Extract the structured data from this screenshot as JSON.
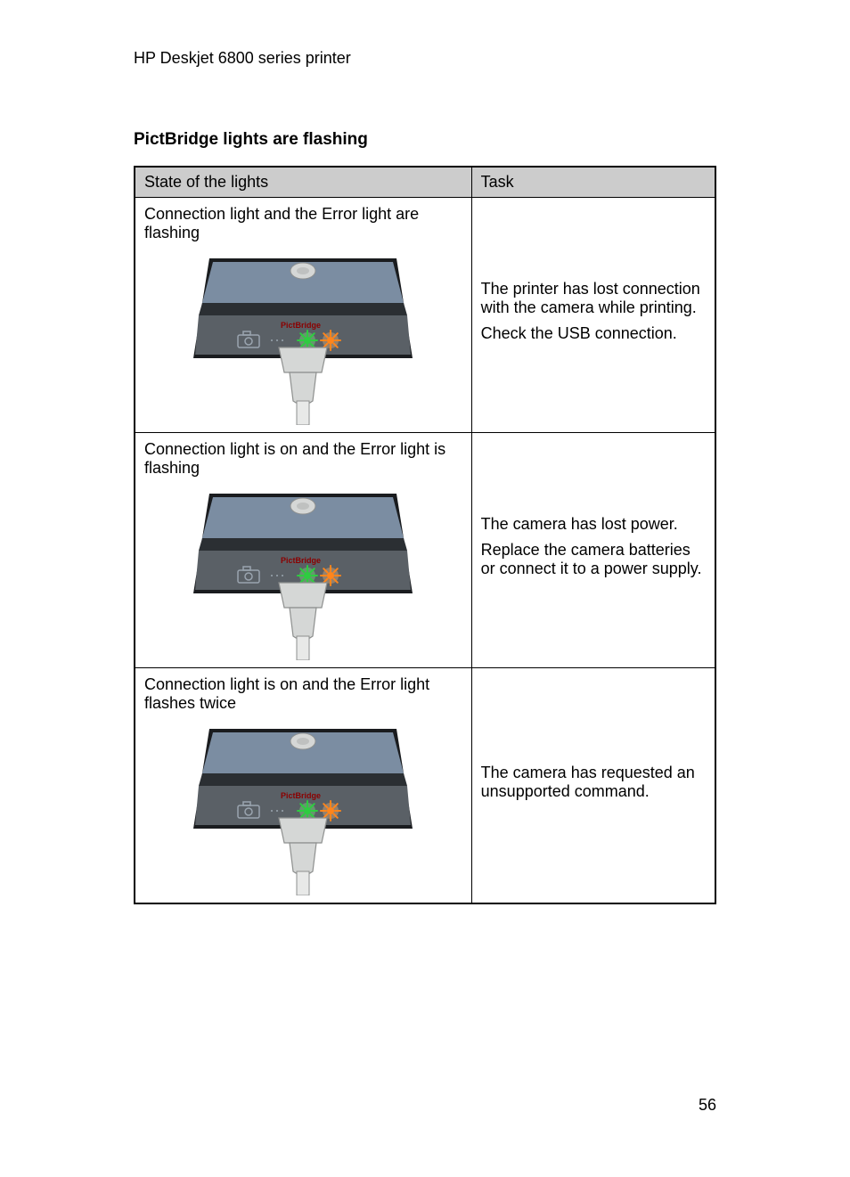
{
  "header": {
    "printer_name": "HP Deskjet 6800 series printer"
  },
  "section": {
    "title": "PictBridge lights are flashing"
  },
  "table": {
    "head": {
      "state": "State of the lights",
      "task": "Task"
    },
    "rows": [
      {
        "state": "Connection light and the Error light are flashing",
        "task_p1": "The printer has lost connection with the camera while printing.",
        "task_p2": "Check the USB connection.",
        "conn_green": "flash",
        "error_orange": "flash"
      },
      {
        "state": "Connection light is on and the Error light is flashing",
        "task_p1": "The camera has lost power.",
        "task_p2": "Replace the camera batteries or connect it to a power supply.",
        "conn_green": "on",
        "error_orange": "flash"
      },
      {
        "state": "Connection light is on and the Error light flashes twice",
        "task_p1": "The camera has requested an unsupported command.",
        "task_p2": "",
        "conn_green": "on",
        "error_orange": "flash"
      }
    ]
  },
  "footer": {
    "page_number": "56"
  },
  "style": {
    "printer_illustration": {
      "upper_band": "#7b8da2",
      "lower_band": "#5a6066",
      "divider": "#2b2f33",
      "outline": "#1a1c1f",
      "usb_plug_fill": "#d5d7d6",
      "usb_plug_stroke": "#8e908f",
      "usb_cable": "#e8e9e8",
      "camera_icon_stroke": "#9aa4af",
      "label_text_color": "#8b0000",
      "label_text": "PictBridge",
      "green_light": "#2ecc40",
      "orange_light": "#ff851b",
      "glow_green": "#7fff7f",
      "glow_orange": "#ffc07f"
    },
    "background": "#ffffff",
    "table_header_bg": "#cccccc",
    "border_color": "#000000",
    "text_color": "#000000",
    "font_family": "Arial, Helvetica, sans-serif",
    "header_fontsize": 18,
    "section_title_fontsize": 19,
    "cell_fontsize": 18
  }
}
